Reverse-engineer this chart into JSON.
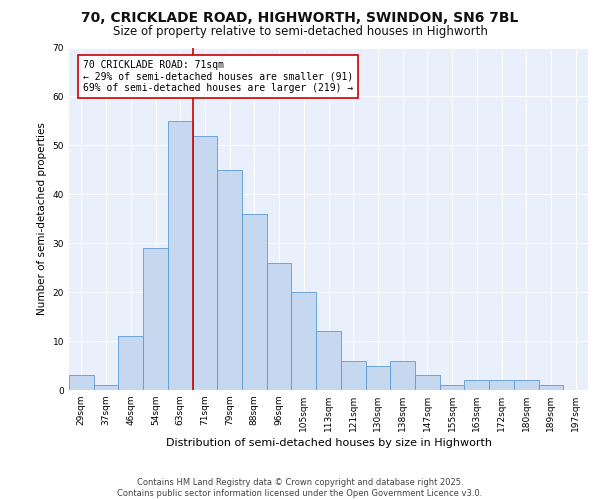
{
  "title1": "70, CRICKLADE ROAD, HIGHWORTH, SWINDON, SN6 7BL",
  "title2": "Size of property relative to semi-detached houses in Highworth",
  "xlabel": "Distribution of semi-detached houses by size in Highworth",
  "ylabel": "Number of semi-detached properties",
  "categories": [
    "29sqm",
    "37sqm",
    "46sqm",
    "54sqm",
    "63sqm",
    "71sqm",
    "79sqm",
    "88sqm",
    "96sqm",
    "105sqm",
    "113sqm",
    "121sqm",
    "130sqm",
    "138sqm",
    "147sqm",
    "155sqm",
    "163sqm",
    "172sqm",
    "180sqm",
    "189sqm",
    "197sqm"
  ],
  "values": [
    3,
    1,
    11,
    29,
    55,
    52,
    45,
    36,
    26,
    20,
    12,
    6,
    5,
    6,
    3,
    1,
    2,
    2,
    2,
    1,
    0
  ],
  "bar_color": "#c5d8f0",
  "bar_edge_color": "#5b9bd5",
  "highlight_color": "#cc0000",
  "annotation_text": "70 CRICKLADE ROAD: 71sqm\n← 29% of semi-detached houses are smaller (91)\n69% of semi-detached houses are larger (219) →",
  "ylim": [
    0,
    70
  ],
  "yticks": [
    0,
    10,
    20,
    30,
    40,
    50,
    60,
    70
  ],
  "background_color": "#eaf0fb",
  "footer_text": "Contains HM Land Registry data © Crown copyright and database right 2025.\nContains public sector information licensed under the Open Government Licence v3.0.",
  "title1_fontsize": 10,
  "title2_fontsize": 8.5,
  "xlabel_fontsize": 8,
  "ylabel_fontsize": 7.5,
  "tick_fontsize": 6.5,
  "annotation_fontsize": 7,
  "footer_fontsize": 6
}
